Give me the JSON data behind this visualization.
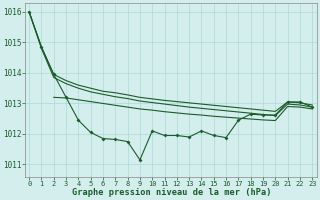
{
  "background_color": "#d4eeee",
  "grid_color": "#b0d8d8",
  "line_color": "#1a5c2a",
  "title": "Graphe pression niveau de la mer (hPa)",
  "yticks": [
    1011,
    1012,
    1013,
    1014,
    1015,
    1016
  ],
  "xticks": [
    0,
    1,
    2,
    3,
    4,
    5,
    6,
    7,
    8,
    9,
    10,
    11,
    12,
    13,
    14,
    15,
    16,
    17,
    18,
    19,
    20,
    21,
    22,
    23
  ],
  "ylim": [
    1010.6,
    1016.3
  ],
  "xlim": [
    -0.3,
    23.4
  ],
  "smooth_top_x": [
    0,
    1,
    2,
    3,
    4,
    5,
    6,
    7,
    8,
    9,
    10,
    11,
    12,
    13,
    14,
    15,
    16,
    17,
    18,
    19,
    20,
    21,
    22,
    23
  ],
  "smooth_top_y": [
    1016.0,
    1014.85,
    1013.95,
    1013.75,
    1013.6,
    1013.5,
    1013.4,
    1013.35,
    1013.28,
    1013.2,
    1013.15,
    1013.1,
    1013.06,
    1013.02,
    1012.98,
    1012.94,
    1012.9,
    1012.86,
    1012.82,
    1012.78,
    1012.74,
    1013.05,
    1013.02,
    1012.95
  ],
  "smooth_mid_x": [
    0,
    1,
    2,
    3,
    4,
    5,
    6,
    7,
    8,
    9,
    10,
    11,
    12,
    13,
    14,
    15,
    16,
    17,
    18,
    19,
    20,
    21,
    22,
    23
  ],
  "smooth_mid_y": [
    1016.0,
    1014.8,
    1013.85,
    1013.65,
    1013.5,
    1013.38,
    1013.3,
    1013.22,
    1013.16,
    1013.08,
    1013.03,
    1012.98,
    1012.93,
    1012.88,
    1012.84,
    1012.8,
    1012.76,
    1012.72,
    1012.68,
    1012.64,
    1012.6,
    1012.98,
    1012.95,
    1012.88
  ],
  "smooth_low_x": [
    2,
    3,
    4,
    5,
    6,
    7,
    8,
    9,
    10,
    11,
    12,
    13,
    14,
    15,
    16,
    17,
    18,
    19,
    20,
    21,
    22,
    23
  ],
  "smooth_low_y": [
    1013.2,
    1013.18,
    1013.12,
    1013.06,
    1013.0,
    1012.94,
    1012.88,
    1012.82,
    1012.78,
    1012.73,
    1012.69,
    1012.65,
    1012.62,
    1012.58,
    1012.55,
    1012.52,
    1012.49,
    1012.46,
    1012.44,
    1012.9,
    1012.88,
    1012.82
  ],
  "marker_x": [
    0,
    1,
    2,
    3,
    4,
    5,
    6,
    7,
    8,
    9,
    10,
    11,
    12,
    13,
    14,
    15,
    16,
    17,
    18,
    19,
    20,
    21,
    22,
    23
  ],
  "marker_y": [
    1016.0,
    1014.85,
    1013.95,
    1013.2,
    1012.45,
    1012.05,
    1011.85,
    1011.82,
    1011.75,
    1011.15,
    1012.1,
    1011.95,
    1011.95,
    1011.9,
    1012.1,
    1011.95,
    1011.88,
    1012.45,
    1012.65,
    1012.62,
    1012.62,
    1013.05,
    1013.05,
    1012.88
  ]
}
